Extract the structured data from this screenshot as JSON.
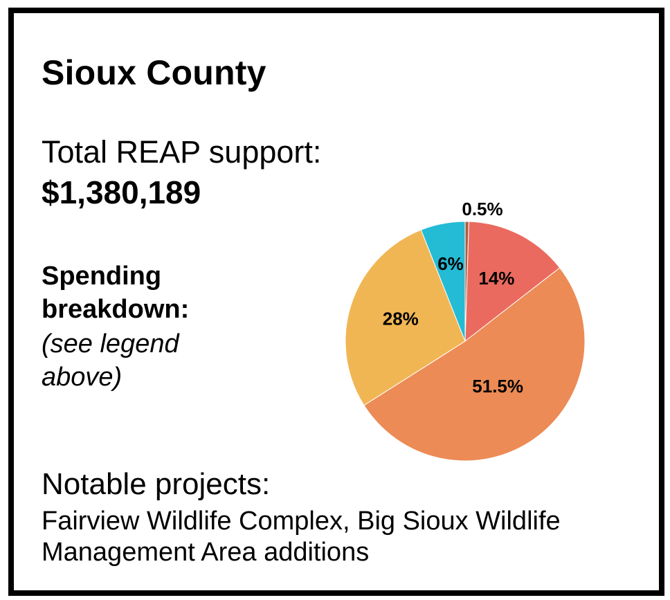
{
  "title": "Sioux County",
  "support": {
    "label": "Total REAP support:",
    "amount": "$1,380,189"
  },
  "spending": {
    "title": "Spending breakdown:",
    "note": "(see legend above)"
  },
  "projects": {
    "title": "Notable projects:",
    "text": "Fairview Wildlife Complex, Big Sioux Wildlife Management Area additions"
  },
  "chart_data": {
    "type": "pie",
    "start_angle_deg": 0,
    "direction": "clockwise",
    "slices": [
      {
        "label": "0.5%",
        "value": 0.5,
        "color": "#b65a3f"
      },
      {
        "label": "14%",
        "value": 14,
        "color": "#ea6a5f"
      },
      {
        "label": "51.5%",
        "value": 51.5,
        "color": "#ec8b55"
      },
      {
        "label": "28%",
        "value": 28,
        "color": "#f1b654"
      },
      {
        "label": "6%",
        "value": 6,
        "color": "#24bbd5"
      }
    ]
  }
}
